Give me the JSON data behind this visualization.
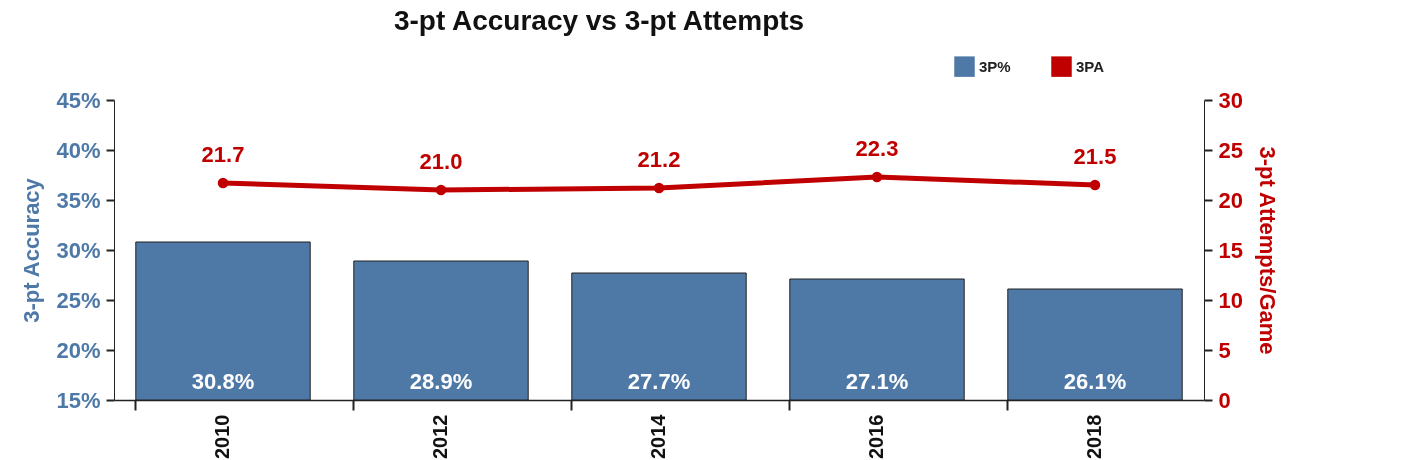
{
  "chart_data": {
    "type": "bar",
    "title": "3-pt Accuracy vs 3-pt Attempts",
    "ylabel": "3-pt Accuracy",
    "y2label": "3-pt Attempts/Game",
    "categories": [
      "2010",
      "2012",
      "2014",
      "2016",
      "2018"
    ],
    "series": [
      {
        "name": "3P%",
        "color": "#4e79a7",
        "values": [
          30.8,
          28.9,
          27.7,
          27.1,
          26.1
        ],
        "value_labels": [
          "30.8%",
          "28.9%",
          "27.7%",
          "27.1%",
          "26.1%"
        ]
      },
      {
        "name": "3PA",
        "type": "line",
        "axis": "y2",
        "color": "#c00000",
        "values": [
          21.7,
          21.0,
          21.2,
          22.3,
          21.5
        ],
        "value_labels": [
          "21.7",
          "21.0",
          "21.2",
          "22.3",
          "21.5"
        ]
      }
    ],
    "ylim": [
      15,
      45
    ],
    "yticks": [
      {
        "value": 15,
        "label": "15%"
      },
      {
        "value": 20,
        "label": "20%"
      },
      {
        "value": 25,
        "label": "25%"
      },
      {
        "value": 30,
        "label": "30%"
      },
      {
        "value": 35,
        "label": "35%"
      },
      {
        "value": 40,
        "label": "40%"
      },
      {
        "value": 45,
        "label": "45%"
      }
    ],
    "y2lim": [
      0,
      30
    ],
    "y2ticks": [
      0,
      5,
      10,
      15,
      20,
      25,
      30
    ],
    "grid": false,
    "legend": "top right",
    "marker": "circle",
    "line_style": "solid"
  }
}
